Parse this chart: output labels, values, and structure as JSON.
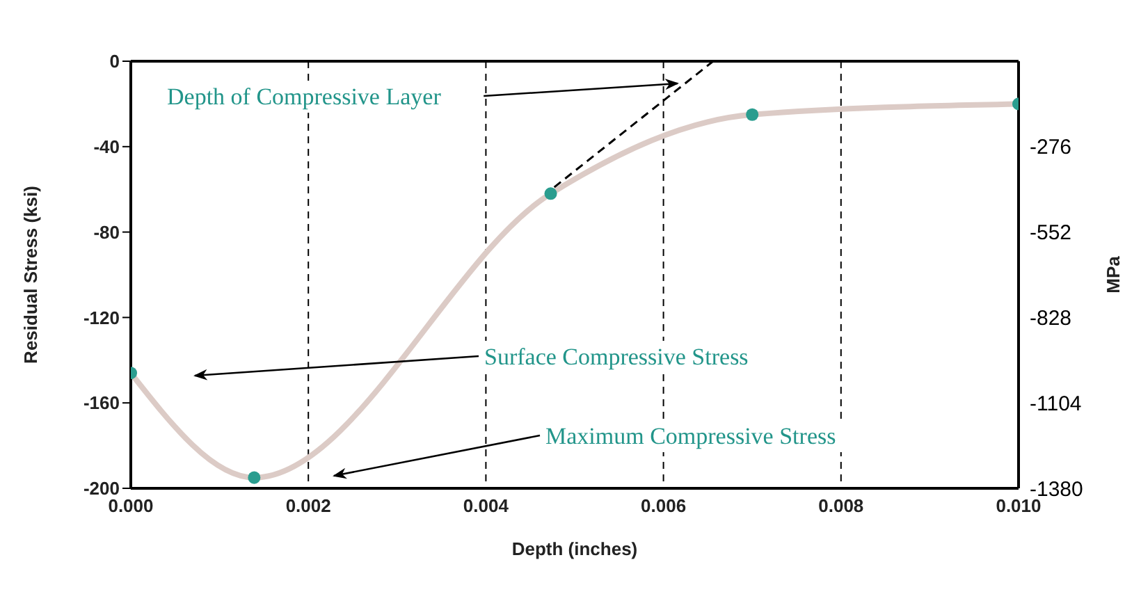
{
  "chart_data": {
    "type": "line",
    "xlabel": "Depth (inches)",
    "ylabel": "Residual Stress (ksi)",
    "y2label": "MPa",
    "x": [
      0,
      0.00139,
      0.00473,
      0.007,
      0.01
    ],
    "series": [
      {
        "type": "line",
        "color": "#dccbc6",
        "values": [
          -146,
          -195,
          -62,
          -25,
          -20
        ],
        "marker": "none"
      },
      {
        "type": "scatter",
        "color": "#2a9d8f",
        "values": [
          -146,
          -195,
          -62,
          -25,
          -20
        ],
        "marker": "circle"
      },
      {
        "type": "line",
        "color": "#000000",
        "x": [
          0.00477,
          0.00656
        ],
        "values": [
          -59,
          0
        ],
        "line_style": "dashed",
        "marker": "none"
      }
    ],
    "xlim": [
      0,
      0.01
    ],
    "xticks": [
      {
        "value": 0,
        "label": "0.000"
      },
      {
        "value": 0.002,
        "label": "0.002"
      },
      {
        "value": 0.004,
        "label": "0.004"
      },
      {
        "value": 0.006,
        "label": "0.006"
      },
      {
        "value": 0.008,
        "label": "0.008"
      },
      {
        "value": 0.01,
        "label": "0.010"
      }
    ],
    "ylim": [
      -200,
      0
    ],
    "yticks": [
      -200,
      -160,
      -120,
      -80,
      -40,
      0
    ],
    "y2lim": [
      -1380,
      0
    ],
    "y2ticks": [
      -1380,
      -1104,
      -828,
      -552,
      -276
    ],
    "grid": true,
    "annotations": [
      "Depth of Compressive Layer",
      "Surface Compressive Stress",
      "Maximum Compressive Stress"
    ]
  }
}
